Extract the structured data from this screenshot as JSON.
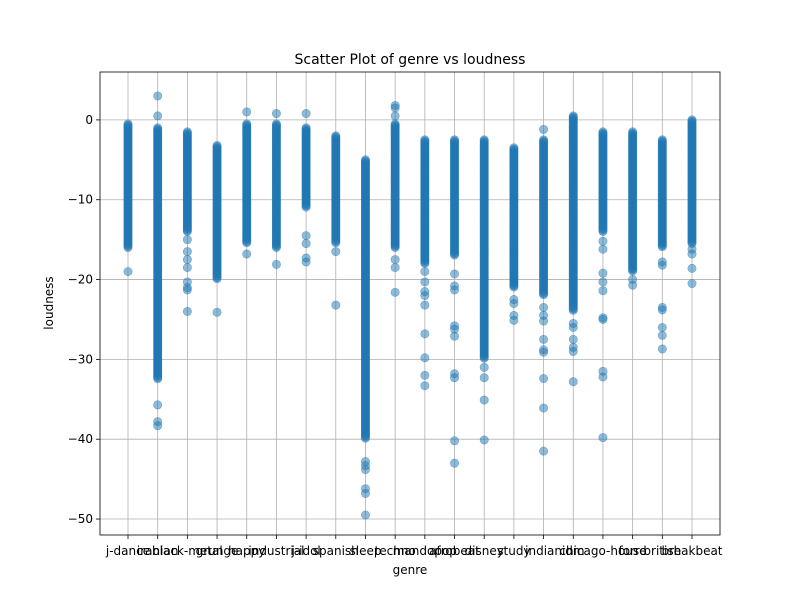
{
  "chart_data": {
    "type": "scatter",
    "title": "Scatter Plot of genre vs loudness",
    "xlabel": "genre",
    "ylabel": "loudness",
    "ylim": [
      -52,
      6
    ],
    "yticks": [
      0,
      -10,
      -20,
      -30,
      -40,
      -50
    ],
    "grid": true,
    "point_color": "#1f77b4",
    "point_alpha": 0.5,
    "categories": [
      "j-dance",
      "iranian",
      "black-metal",
      "grunge",
      "happy",
      "industrial",
      "j-idol",
      "spanish",
      "sleep",
      "techno",
      "mandopop",
      "afrobeat",
      "disney",
      "study",
      "indian",
      "idm",
      "chicago-house",
      "forro",
      "british",
      "breakbeat"
    ],
    "series": [
      {
        "category": "j-dance",
        "dense_min": -16,
        "dense_max": -0.5,
        "outliers": [
          -19
        ]
      },
      {
        "category": "iranian",
        "dense_min": -32.5,
        "dense_max": -1,
        "outliers": [
          3,
          0.5,
          -35.7,
          -37.8,
          -38.3
        ]
      },
      {
        "category": "black-metal",
        "dense_min": -14,
        "dense_max": -1.5,
        "outliers": [
          -15,
          -16.5,
          -17.5,
          -18.5,
          -20.3,
          -21,
          -21.3,
          -24
        ]
      },
      {
        "category": "grunge",
        "dense_min": -20,
        "dense_max": -3.2,
        "outliers": [
          -24.1
        ]
      },
      {
        "category": "happy",
        "dense_min": -15.5,
        "dense_max": -0.5,
        "outliers": [
          1,
          -16.8
        ]
      },
      {
        "category": "industrial",
        "dense_min": -16,
        "dense_max": -0.5,
        "outliers": [
          0.8,
          -18.1
        ]
      },
      {
        "category": "j-idol",
        "dense_min": -11,
        "dense_max": -1,
        "outliers": [
          0.8,
          -14.5,
          -15.5,
          -17.3,
          -17.8
        ]
      },
      {
        "category": "spanish",
        "dense_min": -15.5,
        "dense_max": -2,
        "outliers": [
          -16.5,
          -23.2
        ]
      },
      {
        "category": "sleep",
        "dense_min": -40,
        "dense_max": -5,
        "outliers": [
          -42.8,
          -43.3,
          -43.8,
          -46.2,
          -46.8,
          -49.5
        ]
      },
      {
        "category": "techno",
        "dense_min": -16,
        "dense_max": -0.5,
        "outliers": [
          1.8,
          1.5,
          0.5,
          -17.5,
          -18.5,
          -21.6
        ]
      },
      {
        "category": "mandopop",
        "dense_min": -18,
        "dense_max": -2.5,
        "outliers": [
          -19,
          -20.3,
          -21.5,
          -22,
          -23.2,
          -26.8,
          -29.8,
          -32,
          -33.3
        ]
      },
      {
        "category": "afrobeat",
        "dense_min": -17,
        "dense_max": -2.5,
        "outliers": [
          -19.3,
          -20.8,
          -21.3,
          -25.8,
          -26.2,
          -27.1,
          -31.8,
          -32.3,
          -40.2,
          -43
        ]
      },
      {
        "category": "disney",
        "dense_min": -30,
        "dense_max": -2.5,
        "outliers": [
          -31,
          -32.3,
          -35.1,
          -40.1
        ]
      },
      {
        "category": "study",
        "dense_min": -21,
        "dense_max": -3.5,
        "outliers": [
          -22.5,
          -23,
          -24.5,
          -25.1
        ]
      },
      {
        "category": "indian",
        "dense_min": -22,
        "dense_max": -2.5,
        "outliers": [
          -1.2,
          -23.5,
          -24.5,
          -25.2,
          -27.5,
          -28.8,
          -29.1,
          -32.4,
          -36.1,
          -41.5
        ]
      },
      {
        "category": "idm",
        "dense_min": -24,
        "dense_max": 0.5,
        "outliers": [
          -25.5,
          -26,
          -27.5,
          -28.5,
          -29,
          -32.8
        ]
      },
      {
        "category": "chicago-house",
        "dense_min": -14,
        "dense_max": -1.5,
        "outliers": [
          -15.2,
          -16.2,
          -19.2,
          -20.3,
          -21.4,
          -24.8,
          -25,
          -31.5,
          -32.2,
          -39.8
        ]
      },
      {
        "category": "forro",
        "dense_min": -19,
        "dense_max": -1.5,
        "outliers": [
          -20,
          -20.7
        ]
      },
      {
        "category": "british",
        "dense_min": -16,
        "dense_max": -2.5,
        "outliers": [
          -17.8,
          -18.2,
          -23.5,
          -23.8,
          -26,
          -27,
          -28.7
        ]
      },
      {
        "category": "breakbeat",
        "dense_min": -15.5,
        "dense_max": 0,
        "outliers": [
          -16.2,
          -16.8,
          -18.6,
          -20.5
        ]
      }
    ]
  }
}
